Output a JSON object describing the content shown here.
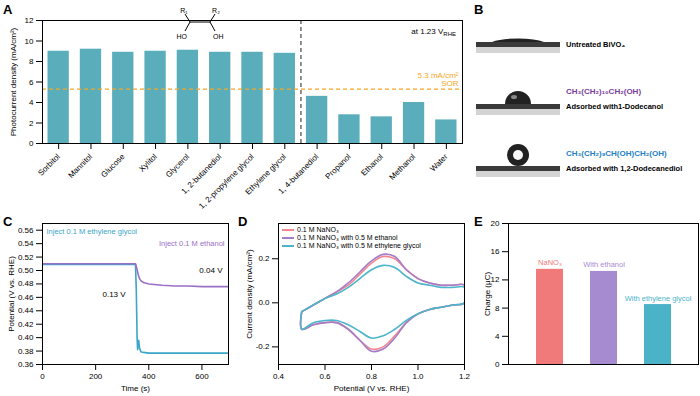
{
  "chart_data": [
    {
      "panel": "A",
      "type": "bar",
      "ylabel": "Photocurrent density (mA/cm²)",
      "categories": [
        "Sorbitol",
        "Mannitol",
        "Glucose",
        "Xylitol",
        "Glycerol",
        "1, 2-butanediol",
        "1, 2-propylene glycol",
        "Ethylene glycol",
        "1, 4-butanediol",
        "Propanol",
        "Ethanol",
        "Methanol",
        "Water"
      ],
      "values": [
        9.0,
        9.2,
        8.9,
        9.0,
        9.1,
        8.9,
        8.9,
        8.8,
        4.6,
        2.8,
        2.6,
        4.0,
        2.3
      ],
      "color": "#5aaebb",
      "ylim": [
        0,
        12
      ],
      "yticks": [
        0,
        2,
        4,
        6,
        8,
        10,
        12
      ],
      "reference_value": 5.3,
      "reference_label": [
        "5.3 mA/cm²",
        "SOR"
      ],
      "reference_color": "#f5a623",
      "annotation": [
        "at 1.23 V",
        "RHE"
      ],
      "structure_labels": [
        "R₁",
        "R₂",
        "HO",
        "OH"
      ]
    },
    {
      "panel": "B",
      "type": "image",
      "items": [
        {
          "caption": "Untreated BiVO₄"
        },
        {
          "formula": "CH₃(CH₂)₁₀CH₂(OH)",
          "color": "#7a3d9c",
          "caption": "Adsorbed with1-Dodecanol"
        },
        {
          "formula": "CH₃(CH₂)₉CH(OH)CH₂(OH)",
          "color": "#1f7fc4",
          "caption": "Adsorbed with 1,2-Dodecanediol"
        }
      ]
    },
    {
      "panel": "C",
      "type": "line",
      "xlabel": "Time (s)",
      "ylabel": "Potential (V vs. RHE)",
      "xlim": [
        0,
        700
      ],
      "xticks": [
        0,
        200,
        400,
        600
      ],
      "ylim": [
        0.36,
        0.57
      ],
      "yticks": [
        0.36,
        0.38,
        {
          "value": 0.4,
          "label": "0.40"
        },
        0.42,
        0.44,
        0.46,
        0.48,
        {
          "value": 0.5,
          "label": "0.50"
        },
        0.52,
        0.54,
        0.56
      ],
      "series": [
        {
          "name": "Inject 0.1 M ethylene glycol",
          "color": "#3aa6c8",
          "x": [
            0,
            50,
            100,
            150,
            200,
            250,
            300,
            350,
            353,
            356,
            358,
            360,
            362,
            365,
            370,
            380,
            400,
            450,
            500,
            550,
            600,
            650,
            700
          ],
          "values": [
            0.509,
            0.509,
            0.509,
            0.509,
            0.509,
            0.509,
            0.509,
            0.509,
            0.47,
            0.4,
            0.382,
            0.392,
            0.396,
            0.385,
            0.379,
            0.378,
            0.377,
            0.377,
            0.377,
            0.377,
            0.377,
            0.377,
            0.377
          ]
        },
        {
          "name": "Inject 0.1 M ethanol",
          "color": "#9b6fc5",
          "x": [
            0,
            50,
            100,
            150,
            200,
            250,
            300,
            350,
            355,
            360,
            365,
            370,
            380,
            400,
            450,
            500,
            550,
            600,
            650,
            700
          ],
          "values": [
            0.51,
            0.51,
            0.51,
            0.51,
            0.51,
            0.51,
            0.51,
            0.51,
            0.503,
            0.494,
            0.488,
            0.485,
            0.482,
            0.48,
            0.478,
            0.477,
            0.477,
            0.476,
            0.476,
            0.476
          ]
        }
      ],
      "annotations": [
        "0.04 V",
        "0.13 V"
      ]
    },
    {
      "panel": "D",
      "type": "line",
      "xlabel": "Potential (V vs. RHE)",
      "ylabel": "Current density (mA/cm²)",
      "xlim": [
        0.4,
        1.2
      ],
      "xticks": [
        0.4,
        0.6,
        0.8,
        {
          "value": 1,
          "label": "1.0"
        },
        1.2
      ],
      "ylim": [
        -0.28,
        0.36
      ],
      "yticks": [
        -0.2,
        {
          "value": 0,
          "label": "0.0"
        },
        0.2
      ],
      "legend": "top-left",
      "x": [
        0.5,
        0.55,
        0.6,
        0.65,
        0.7,
        0.75,
        0.8,
        0.85,
        0.9,
        0.95,
        1.0,
        1.05,
        1.1,
        1.15,
        1.2,
        1.2,
        1.15,
        1.1,
        1.05,
        1.0,
        0.95,
        0.9,
        0.85,
        0.8,
        0.75,
        0.7,
        0.65,
        0.6,
        0.55,
        0.5,
        0.5
      ],
      "series": [
        {
          "name": "0.1 M NaNO₃",
          "color": "#f4868f",
          "values": [
            -0.04,
            -0.01,
            0.02,
            0.05,
            0.08,
            0.13,
            0.18,
            0.21,
            0.2,
            0.15,
            0.11,
            0.09,
            0.08,
            0.08,
            0.08,
            0.0,
            -0.01,
            -0.02,
            -0.03,
            -0.05,
            -0.09,
            -0.15,
            -0.2,
            -0.21,
            -0.17,
            -0.12,
            -0.09,
            -0.09,
            -0.1,
            -0.12,
            -0.04
          ]
        },
        {
          "name": "0.1 M NaNO₃ with 0.5 M ethanol",
          "color": "#a47dc8",
          "values": [
            -0.04,
            -0.01,
            0.02,
            0.05,
            0.09,
            0.14,
            0.19,
            0.22,
            0.21,
            0.15,
            0.11,
            0.09,
            0.08,
            0.08,
            0.08,
            0.0,
            -0.01,
            -0.02,
            -0.03,
            -0.05,
            -0.09,
            -0.16,
            -0.21,
            -0.22,
            -0.17,
            -0.12,
            -0.09,
            -0.09,
            -0.1,
            -0.12,
            -0.04
          ]
        },
        {
          "name": "0.1 M NaNO₃ with 0.5 M ethylene glycol",
          "color": "#4cb5c9",
          "values": [
            -0.04,
            -0.01,
            0.02,
            0.04,
            0.07,
            0.11,
            0.15,
            0.17,
            0.16,
            0.12,
            0.09,
            0.08,
            0.07,
            0.07,
            0.07,
            0.0,
            -0.01,
            -0.02,
            -0.03,
            -0.05,
            -0.08,
            -0.12,
            -0.15,
            -0.16,
            -0.13,
            -0.1,
            -0.08,
            -0.08,
            -0.09,
            -0.12,
            -0.04
          ]
        }
      ]
    },
    {
      "panel": "E",
      "type": "bar",
      "ylabel": "Charge (μC)",
      "categories": [
        "NaNO₃",
        "With ethanol",
        "With ethylene glycol"
      ],
      "values": [
        13.5,
        13.2,
        8.5
      ],
      "colors": [
        "#f07a7a",
        "#a78bd0",
        "#4bb3c8"
      ],
      "ylim": [
        0,
        20
      ],
      "yticks": [
        0,
        4,
        8,
        12,
        16,
        20
      ],
      "tick_labels": "y"
    }
  ]
}
